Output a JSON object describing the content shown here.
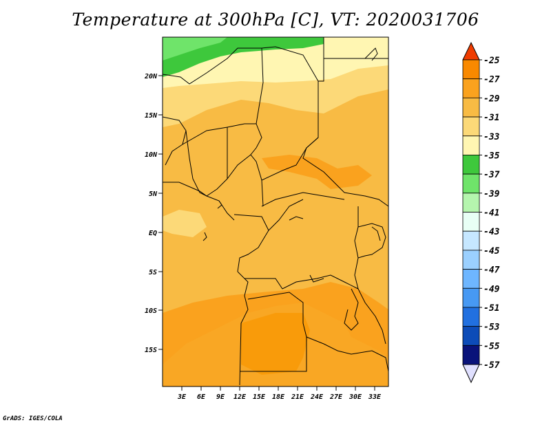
{
  "title": "Temperature at 300hPa [C], VT: 2020031706",
  "credit": "GrADS: IGES/COLA",
  "map": {
    "lat_labels": [
      "20N",
      "15N",
      "10N",
      "5N",
      "EQ",
      "5S",
      "10S",
      "15S"
    ],
    "lon_labels": [
      "3E",
      "6E",
      "9E",
      "12E",
      "15E",
      "18E",
      "21E",
      "24E",
      "27E",
      "30E",
      "33E"
    ]
  },
  "colorbar": {
    "labels": [
      "-25",
      "-27",
      "-29",
      "-31",
      "-33",
      "-35",
      "-37",
      "-39",
      "-41",
      "-43",
      "-45",
      "-47",
      "-49",
      "-51",
      "-53",
      "-55",
      "-57"
    ],
    "colors": [
      "#f05a00",
      "#f98900",
      "#faa21e",
      "#f8bb44",
      "#fcd978",
      "#fff6b2",
      "#3ec83c",
      "#6fe46a",
      "#b5f5ae",
      "#e8fff5",
      "#c6e7ff",
      "#9bd0ff",
      "#6eb6ff",
      "#4799f3",
      "#2170e0",
      "#0d4cb8",
      "#0a137a"
    ],
    "top_arrow_color": "#f03c00",
    "bottom_arrow_color": "#e0e0ff"
  }
}
